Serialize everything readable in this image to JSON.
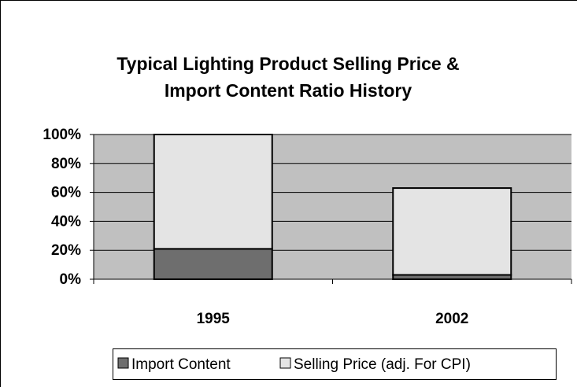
{
  "chart_data": {
    "type": "stacked_bar",
    "title": [
      "Typical Lighting Product Selling Price &",
      "Import Content Ratio History"
    ],
    "categories": [
      "1995",
      "2002"
    ],
    "series": [
      {
        "name": "Import Content",
        "color": "#6e6e6e",
        "values": [
          21,
          3
        ]
      },
      {
        "name": "Selling Price (adj. For CPI)",
        "color": "#e4e4e4",
        "values": [
          79,
          60
        ]
      }
    ],
    "ylim": [
      0,
      100
    ],
    "yticks": [
      {
        "value": 0,
        "label": "0%"
      },
      {
        "value": 20,
        "label": "20%"
      },
      {
        "value": 40,
        "label": "40%"
      },
      {
        "value": 60,
        "label": "60%"
      },
      {
        "value": 80,
        "label": "80%"
      },
      {
        "value": 100,
        "label": "100%"
      }
    ],
    "grid": true,
    "legend": "bottom"
  }
}
